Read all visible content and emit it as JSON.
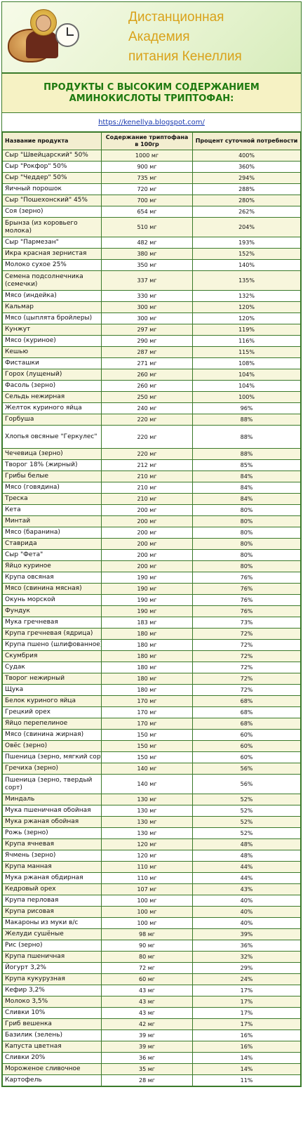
{
  "header": {
    "brand_line1": "Дистанционная",
    "brand_line2": "Академия",
    "brand_line3": "питания Кенеллия"
  },
  "title": "ПРОДУКТЫ С ВЫСОКИМ СОДЕРЖАНИЕМ АМИНОКИСЛОТЫ ТРИПТОФАН:",
  "link": "https://kenellya.blogspot.com/",
  "table": {
    "headers": [
      "Название продукта",
      "Содержание триптофана в 100гр",
      "Процент суточной потребности"
    ],
    "rows": [
      [
        "Сыр \"Швейцарский\" 50%",
        "1000 мг",
        "400%"
      ],
      [
        "Сыр \"Рокфор\" 50%",
        "900 мг",
        "360%"
      ],
      [
        "Сыр \"Чеддер\" 50%",
        "735 мг",
        "294%"
      ],
      [
        "Яичный порошок",
        "720 мг",
        "288%"
      ],
      [
        "Сыр \"Пошехонский\" 45%",
        "700 мг",
        "280%"
      ],
      [
        "Соя (зерно)",
        "654 мг",
        "262%"
      ],
      [
        "Брынза (из коровьего молока)",
        "510 мг",
        "204%"
      ],
      [
        "Сыр \"Пармезан\"",
        "482 мг",
        "193%"
      ],
      [
        "Икра красная зернистая",
        "380 мг",
        "152%"
      ],
      [
        "Молоко сухое 25%",
        "350 мг",
        "140%"
      ],
      [
        "Семена подсолнечника (семечки)",
        "337 мг",
        "135%"
      ],
      [
        "Мясо (индейка)",
        "330 мг",
        "132%"
      ],
      [
        "Кальмар",
        "300 мг",
        "120%"
      ],
      [
        "Мясо (цыплята бройлеры)",
        "300 мг",
        "120%"
      ],
      [
        "Кунжут",
        "297 мг",
        "119%"
      ],
      [
        "Мясо (куриное)",
        "290 мг",
        "116%"
      ],
      [
        "Кешью",
        "287 мг",
        "115%"
      ],
      [
        "Фисташки",
        "271 мг",
        "108%"
      ],
      [
        "Горох (лущеный)",
        "260 мг",
        "104%"
      ],
      [
        "Фасоль (зерно)",
        "260 мг",
        "104%"
      ],
      [
        "Сельдь нежирная",
        "250 мг",
        "100%"
      ],
      [
        "Желток куриного яйца",
        "240 мг",
        "96%"
      ],
      [
        "Горбуша",
        "220 мг",
        "88%"
      ],
      [
        "Хлопья овсяные \"Геркулес\"",
        "220 мг",
        "88%"
      ],
      [
        "Чечевица (зерно)",
        "220 мг",
        "88%"
      ],
      [
        "Творог 18% (жирный)",
        "212 мг",
        "85%"
      ],
      [
        "Грибы белые",
        "210 мг",
        "84%"
      ],
      [
        "Мясо (говядина)",
        "210 мг",
        "84%"
      ],
      [
        "Треска",
        "210 мг",
        "84%"
      ],
      [
        "Кета",
        "200 мг",
        "80%"
      ],
      [
        "Минтай",
        "200 мг",
        "80%"
      ],
      [
        "Мясо (баранина)",
        "200 мг",
        "80%"
      ],
      [
        "Ставрида",
        "200 мг",
        "80%"
      ],
      [
        "Сыр \"Фета\"",
        "200 мг",
        "80%"
      ],
      [
        "Яйцо куриное",
        "200 мг",
        "80%"
      ],
      [
        "Крупа овсяная",
        "190 мг",
        "76%"
      ],
      [
        "Мясо (свинина мясная)",
        "190 мг",
        "76%"
      ],
      [
        "Окунь морской",
        "190 мг",
        "76%"
      ],
      [
        "Фундук",
        "190 мг",
        "76%"
      ],
      [
        "Мука гречневая",
        "183 мг",
        "73%"
      ],
      [
        "Крупа гречневая (ядрица)",
        "180 мг",
        "72%"
      ],
      [
        "Крупа пшено (шлифованное)",
        "180 мг",
        "72%"
      ],
      [
        "Скумбрия",
        "180 мг",
        "72%"
      ],
      [
        "Судак",
        "180 мг",
        "72%"
      ],
      [
        "Творог нежирный",
        "180 мг",
        "72%"
      ],
      [
        "Щука",
        "180 мг",
        "72%"
      ],
      [
        "Белок куриного яйца",
        "170 мг",
        "68%"
      ],
      [
        "Грецкий орех",
        "170 мг",
        "68%"
      ],
      [
        "Яйцо перепелиное",
        "170 мг",
        "68%"
      ],
      [
        "Мясо (свинина жирная)",
        "150 мг",
        "60%"
      ],
      [
        "Овёс (зерно)",
        "150 мг",
        "60%"
      ],
      [
        "Пшеница (зерно, мягкий сорт)",
        "150 мг",
        "60%"
      ],
      [
        "Гречиха (зерно)",
        "140 мг",
        "56%"
      ],
      [
        "Пшеница (зерно, твердый сорт)",
        "140 мг",
        "56%"
      ],
      [
        "Миндаль",
        "130 мг",
        "52%"
      ],
      [
        "Мука пшеничная обойная",
        "130 мг",
        "52%"
      ],
      [
        "Мука ржаная обойная",
        "130 мг",
        "52%"
      ],
      [
        "Рожь (зерно)",
        "130 мг",
        "52%"
      ],
      [
        "Крупа ячневая",
        "120 мг",
        "48%"
      ],
      [
        "Ячмень (зерно)",
        "120 мг",
        "48%"
      ],
      [
        "Крупа манная",
        "110 мг",
        "44%"
      ],
      [
        "Мука ржаная обдирная",
        "110 мг",
        "44%"
      ],
      [
        "Кедровый орех",
        "107 мг",
        "43%"
      ],
      [
        "Крупа перловая",
        "100 мг",
        "40%"
      ],
      [
        "Крупа рисовая",
        "100 мг",
        "40%"
      ],
      [
        "Макароны из муки в/с",
        "100 мг",
        "40%"
      ],
      [
        "Желуди сушёные",
        "98 мг",
        "39%"
      ],
      [
        "Рис (зерно)",
        "90 мг",
        "36%"
      ],
      [
        "Крупа пшеничная",
        "80 мг",
        "32%"
      ],
      [
        "Йогурт 3,2%",
        "72 мг",
        "29%"
      ],
      [
        "Крупа кукурузная",
        "60 мг",
        "24%"
      ],
      [
        "Кефир 3,2%",
        "43 мг",
        "17%"
      ],
      [
        "Молоко 3,5%",
        "43 мг",
        "17%"
      ],
      [
        "Сливки 10%",
        "43 мг",
        "17%"
      ],
      [
        "Гриб вешенка",
        "42 мг",
        "17%"
      ],
      [
        "Базилик (зелень)",
        "39 мг",
        "16%"
      ],
      [
        "Капуста цветная",
        "39 мг",
        "16%"
      ],
      [
        "Сливки 20%",
        "36 мг",
        "14%"
      ],
      [
        "Мороженое сливочное",
        "35 мг",
        "14%"
      ],
      [
        "Картофель",
        "28 мг",
        "11%"
      ]
    ]
  }
}
